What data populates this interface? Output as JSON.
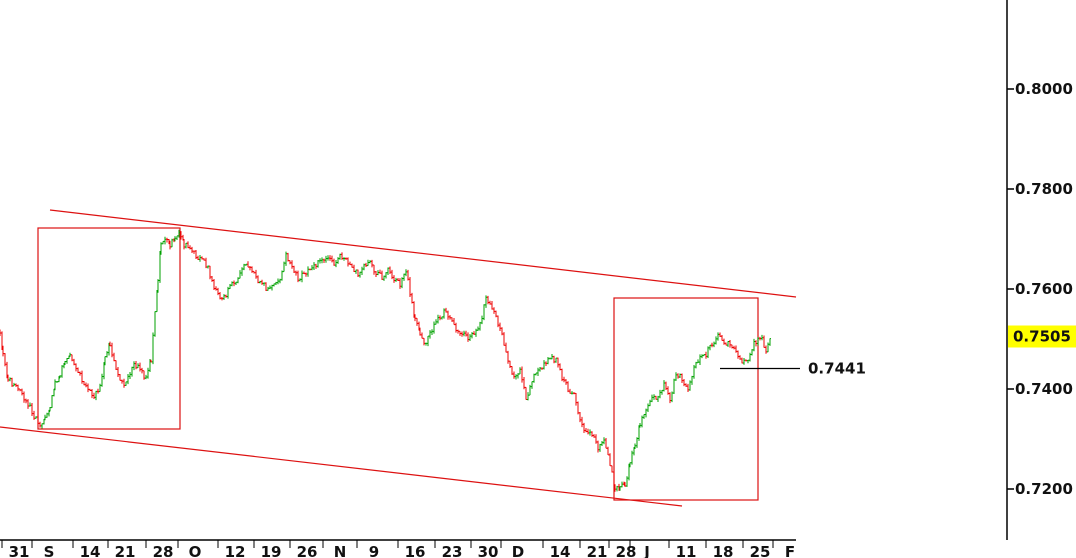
{
  "chart_data": {
    "type": "candlestick",
    "title": "",
    "xlabel": "",
    "ylabel": "",
    "ylim": [
      0.71,
      0.82
    ],
    "y_axis_position": "right",
    "y_ticks": [
      "0.8000",
      "0.7800",
      "0.7600",
      "0.7400",
      "0.7200"
    ],
    "x_ticks": [
      "31",
      "S",
      "14",
      "21",
      "28",
      "O",
      "12",
      "19",
      "26",
      "N",
      "9",
      "16",
      "23",
      "30",
      "D",
      "14",
      "21",
      "28",
      "J",
      "11",
      "18",
      "25",
      "F"
    ],
    "last_price": "0.7505",
    "level_annotation": "0.7441",
    "colors": {
      "up": "#00a000",
      "down": "#ee0000",
      "channel": "#dd1111",
      "highlight": "#ffff00"
    },
    "series": [
      {
        "points": [
          [
            0,
            0.7518
          ],
          [
            3,
            0.747
          ],
          [
            8,
            0.742
          ],
          [
            14,
            0.7405
          ],
          [
            20,
            0.7395
          ],
          [
            28,
            0.737
          ],
          [
            34,
            0.7345
          ],
          [
            40,
            0.7325
          ],
          [
            45,
            0.734
          ],
          [
            50,
            0.7365
          ],
          [
            55,
            0.741
          ],
          [
            60,
            0.743
          ],
          [
            65,
            0.746
          ],
          [
            70,
            0.747
          ],
          [
            76,
            0.7445
          ],
          [
            82,
            0.742
          ],
          [
            88,
            0.74
          ],
          [
            94,
            0.738
          ],
          [
            100,
            0.741
          ],
          [
            105,
            0.746
          ],
          [
            110,
            0.749
          ],
          [
            116,
            0.744
          ],
          [
            122,
            0.741
          ],
          [
            128,
            0.742
          ],
          [
            134,
            0.745
          ],
          [
            140,
            0.744
          ],
          [
            146,
            0.742
          ],
          [
            151,
            0.746
          ],
          [
            155,
            0.755
          ],
          [
            158,
            0.762
          ],
          [
            161,
            0.769
          ],
          [
            165,
            0.77
          ],
          [
            170,
            0.769
          ],
          [
            175,
            0.77
          ],
          [
            179,
            0.7715
          ],
          [
            184,
            0.769
          ],
          [
            190,
            0.768
          ],
          [
            196,
            0.7665
          ],
          [
            202,
            0.766
          ],
          [
            208,
            0.764
          ],
          [
            214,
            0.76
          ],
          [
            220,
            0.758
          ],
          [
            226,
            0.759
          ],
          [
            232,
            0.761
          ],
          [
            238,
            0.762
          ],
          [
            244,
            0.765
          ],
          [
            250,
            0.764
          ],
          [
            256,
            0.762
          ],
          [
            262,
            0.761
          ],
          [
            268,
            0.76
          ],
          [
            274,
            0.761
          ],
          [
            280,
            0.762
          ],
          [
            286,
            0.767
          ],
          [
            292,
            0.764
          ],
          [
            298,
            0.762
          ],
          [
            304,
            0.763
          ],
          [
            310,
            0.764
          ],
          [
            316,
            0.765
          ],
          [
            322,
            0.7655
          ],
          [
            328,
            0.766
          ],
          [
            334,
            0.765
          ],
          [
            340,
            0.7665
          ],
          [
            346,
            0.766
          ],
          [
            352,
            0.764
          ],
          [
            358,
            0.763
          ],
          [
            364,
            0.7645
          ],
          [
            370,
            0.765
          ],
          [
            376,
            0.763
          ],
          [
            382,
            0.7625
          ],
          [
            388,
            0.764
          ],
          [
            394,
            0.762
          ],
          [
            400,
            0.761
          ],
          [
            406,
            0.764
          ],
          [
            410,
            0.759
          ],
          [
            415,
            0.754
          ],
          [
            420,
            0.751
          ],
          [
            426,
            0.749
          ],
          [
            432,
            0.752
          ],
          [
            438,
            0.754
          ],
          [
            444,
            0.7555
          ],
          [
            450,
            0.754
          ],
          [
            456,
            0.752
          ],
          [
            462,
            0.751
          ],
          [
            468,
            0.75
          ],
          [
            474,
            0.751
          ],
          [
            480,
            0.753
          ],
          [
            486,
            0.758
          ],
          [
            492,
            0.756
          ],
          [
            498,
            0.753
          ],
          [
            502,
            0.751
          ],
          [
            508,
            0.745
          ],
          [
            514,
            0.742
          ],
          [
            520,
            0.744
          ],
          [
            526,
            0.738
          ],
          [
            532,
            0.742
          ],
          [
            538,
            0.744
          ],
          [
            544,
            0.745
          ],
          [
            550,
            0.746
          ],
          [
            556,
            0.746
          ],
          [
            562,
            0.742
          ],
          [
            568,
            0.74
          ],
          [
            574,
            0.739
          ],
          [
            580,
            0.734
          ],
          [
            586,
            0.731
          ],
          [
            592,
            0.731
          ],
          [
            598,
            0.728
          ],
          [
            604,
            0.73
          ],
          [
            610,
            0.725
          ],
          [
            615,
            0.72
          ],
          [
            620,
            0.721
          ],
          [
            625,
            0.721
          ],
          [
            630,
            0.725
          ],
          [
            635,
            0.729
          ],
          [
            640,
            0.733
          ],
          [
            646,
            0.736
          ],
          [
            652,
            0.738
          ],
          [
            658,
            0.738
          ],
          [
            664,
            0.741
          ],
          [
            670,
            0.738
          ],
          [
            676,
            0.743
          ],
          [
            682,
            0.742
          ],
          [
            688,
            0.74
          ],
          [
            694,
            0.744
          ],
          [
            700,
            0.746
          ],
          [
            706,
            0.747
          ],
          [
            712,
            0.749
          ],
          [
            718,
            0.7505
          ],
          [
            724,
            0.7495
          ],
          [
            730,
            0.749
          ],
          [
            736,
            0.747
          ],
          [
            742,
            0.745
          ],
          [
            748,
            0.746
          ],
          [
            754,
            0.749
          ],
          [
            760,
            0.7505
          ],
          [
            766,
            0.748
          ],
          [
            772,
            0.7505
          ]
        ]
      }
    ]
  }
}
